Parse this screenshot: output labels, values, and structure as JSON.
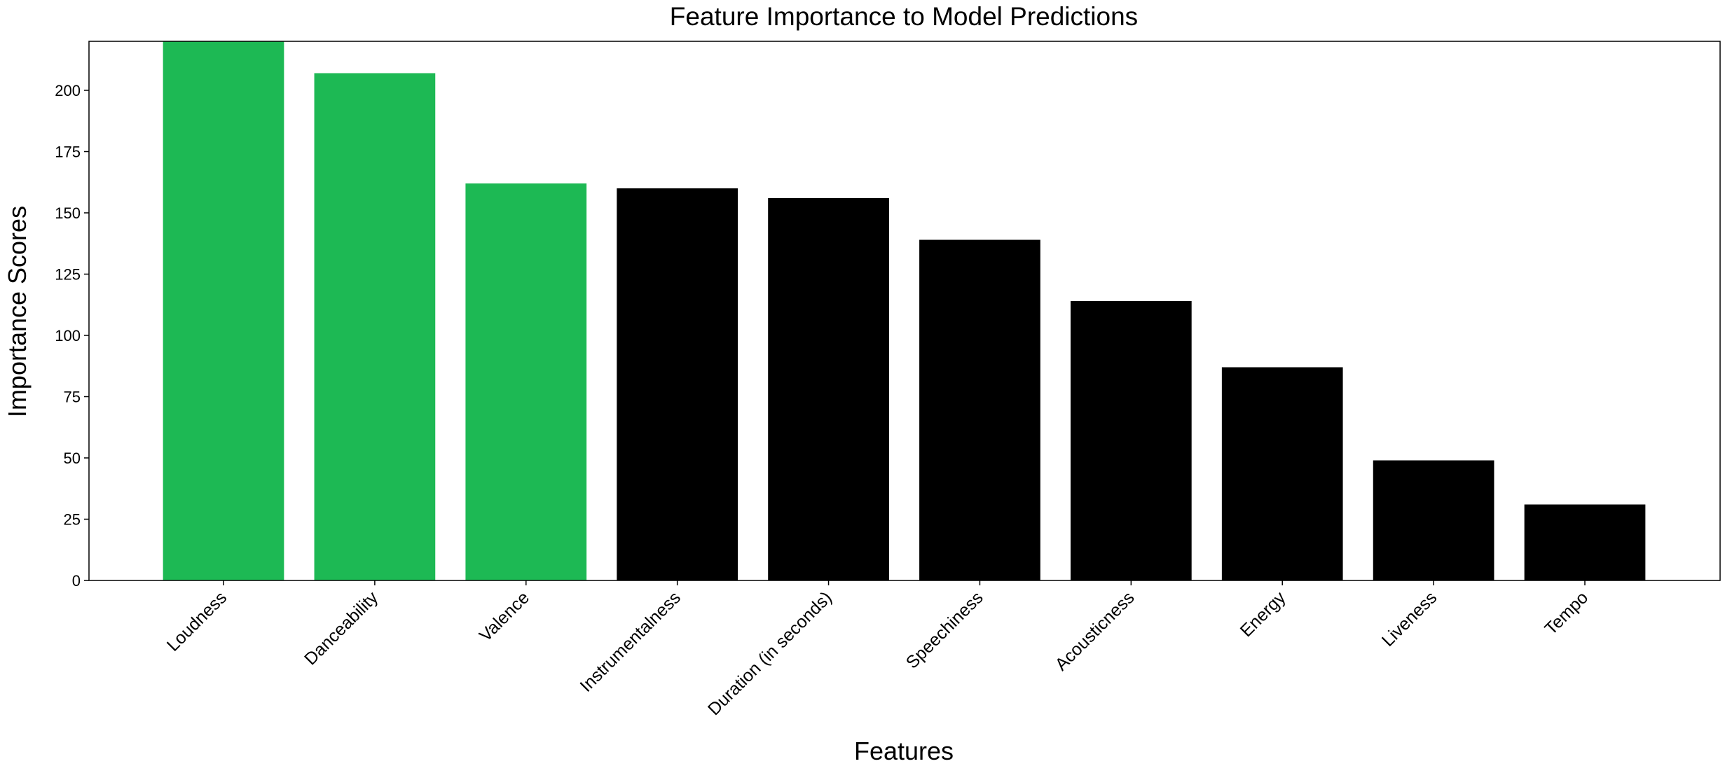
{
  "chart_data": {
    "type": "bar",
    "title": "Feature Importance to Model Predictions",
    "xlabel": "Features",
    "ylabel": "Importance Scores",
    "categories": [
      "Loudness",
      "Danceability",
      "Valence",
      "Instrumentalness",
      "Duration (in seconds)",
      "Speechiness",
      "Acousticness",
      "Energy",
      "Liveness",
      "Tempo"
    ],
    "values": [
      221,
      207,
      162,
      160,
      156,
      139,
      114,
      87,
      49,
      31
    ],
    "bar_colors": [
      "#1db954",
      "#1db954",
      "#1db954",
      "#000000",
      "#000000",
      "#000000",
      "#000000",
      "#000000",
      "#000000",
      "#000000"
    ],
    "ylim": [
      0,
      220
    ],
    "yticks": [
      0,
      25,
      50,
      75,
      100,
      125,
      150,
      175,
      200
    ],
    "grid": false,
    "legend": "none"
  }
}
